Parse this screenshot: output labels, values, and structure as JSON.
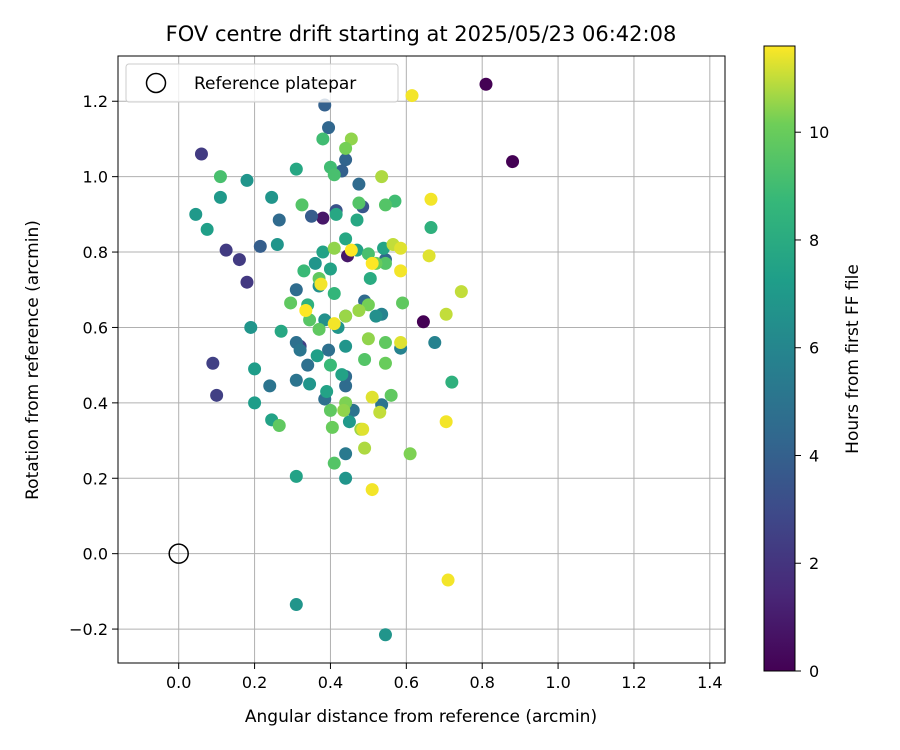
{
  "chart_data": {
    "type": "scatter",
    "title": "FOV centre drift starting at 2025/05/23 06:42:08",
    "xlabel": "Angular distance from reference (arcmin)",
    "ylabel": "Rotation from reference (arcmin)",
    "xlim": [
      -0.16,
      1.44
    ],
    "ylim": [
      -0.29,
      1.32
    ],
    "xticks": [
      "0.0",
      "0.2",
      "0.4",
      "0.6",
      "0.8",
      "1.0",
      "1.2",
      "1.4"
    ],
    "yticks": [
      "−0.2",
      "0.0",
      "0.2",
      "0.4",
      "0.6",
      "0.8",
      "1.0",
      "1.2"
    ],
    "grid": true,
    "legend": {
      "position": "top-left",
      "label": "Reference platepar"
    },
    "colorbar": {
      "label": "Hours from first FF file",
      "colormap": "viridis",
      "range": [
        0,
        11.6
      ],
      "ticks": [
        "0",
        "2",
        "4",
        "6",
        "8",
        "10"
      ]
    },
    "reference_point": {
      "x": 0.0,
      "y": 0.0
    },
    "points": [
      {
        "x": 0.81,
        "y": 1.245,
        "t": 0
      },
      {
        "x": 0.88,
        "y": 1.04,
        "t": 0
      },
      {
        "x": 0.645,
        "y": 0.615,
        "t": 0
      },
      {
        "x": 0.38,
        "y": 0.89,
        "t": 0.8
      },
      {
        "x": 0.445,
        "y": 0.79,
        "t": 0.8
      },
      {
        "x": 0.06,
        "y": 1.06,
        "t": 2.3
      },
      {
        "x": 0.125,
        "y": 0.805,
        "t": 2.3
      },
      {
        "x": 0.16,
        "y": 0.78,
        "t": 2.3
      },
      {
        "x": 0.18,
        "y": 0.72,
        "t": 2.2
      },
      {
        "x": 0.09,
        "y": 0.505,
        "t": 2.5
      },
      {
        "x": 0.1,
        "y": 0.42,
        "t": 2.5
      },
      {
        "x": 0.415,
        "y": 0.91,
        "t": 3.3
      },
      {
        "x": 0.485,
        "y": 0.92,
        "t": 3.5
      },
      {
        "x": 0.32,
        "y": 0.55,
        "t": 2.5
      },
      {
        "x": 0.385,
        "y": 1.19,
        "t": 4.0
      },
      {
        "x": 0.395,
        "y": 1.13,
        "t": 4.3
      },
      {
        "x": 0.44,
        "y": 1.045,
        "t": 4.2
      },
      {
        "x": 0.43,
        "y": 1.015,
        "t": 4.0
      },
      {
        "x": 0.475,
        "y": 0.98,
        "t": 4.5
      },
      {
        "x": 0.35,
        "y": 0.895,
        "t": 3.8
      },
      {
        "x": 0.265,
        "y": 0.885,
        "t": 4.5
      },
      {
        "x": 0.215,
        "y": 0.815,
        "t": 3.9
      },
      {
        "x": 0.31,
        "y": 0.7,
        "t": 4.6
      },
      {
        "x": 0.545,
        "y": 0.78,
        "t": 4.3
      },
      {
        "x": 0.49,
        "y": 0.67,
        "t": 4.5
      },
      {
        "x": 0.44,
        "y": 0.63,
        "t": 4.3
      },
      {
        "x": 0.31,
        "y": 0.56,
        "t": 4.8
      },
      {
        "x": 0.32,
        "y": 0.54,
        "t": 5.1
      },
      {
        "x": 0.34,
        "y": 0.5,
        "t": 4.8
      },
      {
        "x": 0.31,
        "y": 0.46,
        "t": 5.0
      },
      {
        "x": 0.24,
        "y": 0.445,
        "t": 5.0
      },
      {
        "x": 0.385,
        "y": 0.41,
        "t": 4.8
      },
      {
        "x": 0.44,
        "y": 0.445,
        "t": 4.6
      },
      {
        "x": 0.44,
        "y": 0.47,
        "t": 4.5
      },
      {
        "x": 0.46,
        "y": 0.38,
        "t": 5.0
      },
      {
        "x": 0.535,
        "y": 0.395,
        "t": 5.0
      },
      {
        "x": 0.44,
        "y": 0.265,
        "t": 5.3
      },
      {
        "x": 0.395,
        "y": 0.54,
        "t": 4.8
      },
      {
        "x": 0.535,
        "y": 0.635,
        "t": 5.8
      },
      {
        "x": 0.585,
        "y": 0.545,
        "t": 5.8
      },
      {
        "x": 0.675,
        "y": 0.56,
        "t": 5.8
      },
      {
        "x": 0.245,
        "y": 0.945,
        "t": 6.8
      },
      {
        "x": 0.26,
        "y": 0.82,
        "t": 6.8
      },
      {
        "x": 0.19,
        "y": 0.6,
        "t": 6.8
      },
      {
        "x": 0.075,
        "y": 0.86,
        "t": 7.3
      },
      {
        "x": 0.045,
        "y": 0.9,
        "t": 7.0
      },
      {
        "x": 0.11,
        "y": 0.945,
        "t": 7.0
      },
      {
        "x": 0.18,
        "y": 0.99,
        "t": 6.8
      },
      {
        "x": 0.36,
        "y": 0.77,
        "t": 6.8
      },
      {
        "x": 0.37,
        "y": 0.71,
        "t": 6.5
      },
      {
        "x": 0.385,
        "y": 0.62,
        "t": 6.5
      },
      {
        "x": 0.42,
        "y": 0.6,
        "t": 6.8
      },
      {
        "x": 0.44,
        "y": 0.55,
        "t": 6.8
      },
      {
        "x": 0.345,
        "y": 0.45,
        "t": 6.8
      },
      {
        "x": 0.2,
        "y": 0.49,
        "t": 7.2
      },
      {
        "x": 0.2,
        "y": 0.4,
        "t": 7.2
      },
      {
        "x": 0.245,
        "y": 0.355,
        "t": 7.5
      },
      {
        "x": 0.31,
        "y": 0.205,
        "t": 7.5
      },
      {
        "x": 0.44,
        "y": 0.2,
        "t": 6.8
      },
      {
        "x": 0.31,
        "y": -0.135,
        "t": 6.8
      },
      {
        "x": 0.545,
        "y": -0.215,
        "t": 6.8
      },
      {
        "x": 0.52,
        "y": 0.63,
        "t": 6.5
      },
      {
        "x": 0.45,
        "y": 0.35,
        "t": 7.0
      },
      {
        "x": 0.39,
        "y": 0.43,
        "t": 7.5
      },
      {
        "x": 0.43,
        "y": 0.475,
        "t": 7.5
      },
      {
        "x": 0.365,
        "y": 0.525,
        "t": 7.3
      },
      {
        "x": 0.27,
        "y": 0.59,
        "t": 7.8
      },
      {
        "x": 0.31,
        "y": 1.02,
        "t": 7.8
      },
      {
        "x": 0.415,
        "y": 0.9,
        "t": 7.8
      },
      {
        "x": 0.47,
        "y": 0.885,
        "t": 7.8
      },
      {
        "x": 0.38,
        "y": 0.8,
        "t": 7.5
      },
      {
        "x": 0.4,
        "y": 0.755,
        "t": 7.5
      },
      {
        "x": 0.505,
        "y": 0.73,
        "t": 8.0
      },
      {
        "x": 0.44,
        "y": 0.835,
        "t": 7.8
      },
      {
        "x": 0.47,
        "y": 0.805,
        "t": 7.5
      },
      {
        "x": 0.54,
        "y": 0.81,
        "t": 7.6
      },
      {
        "x": 0.34,
        "y": 0.66,
        "t": 8.3
      },
      {
        "x": 0.665,
        "y": 0.865,
        "t": 8.3
      },
      {
        "x": 0.72,
        "y": 0.455,
        "t": 8.3
      },
      {
        "x": 0.4,
        "y": 0.5,
        "t": 8.8
      },
      {
        "x": 0.41,
        "y": 0.69,
        "t": 8.6
      },
      {
        "x": 0.33,
        "y": 0.75,
        "t": 8.8
      },
      {
        "x": 0.38,
        "y": 1.1,
        "t": 9.0
      },
      {
        "x": 0.4,
        "y": 1.025,
        "t": 9.0
      },
      {
        "x": 0.41,
        "y": 1.005,
        "t": 9.2
      },
      {
        "x": 0.325,
        "y": 0.925,
        "t": 9.5
      },
      {
        "x": 0.11,
        "y": 1.0,
        "t": 9.2
      },
      {
        "x": 0.475,
        "y": 0.93,
        "t": 9.5
      },
      {
        "x": 0.57,
        "y": 0.935,
        "t": 9.0
      },
      {
        "x": 0.545,
        "y": 0.925,
        "t": 9.5
      },
      {
        "x": 0.5,
        "y": 0.795,
        "t": 9.2
      },
      {
        "x": 0.545,
        "y": 0.77,
        "t": 9.5
      },
      {
        "x": 0.52,
        "y": 0.77,
        "t": 10.0
      },
      {
        "x": 0.37,
        "y": 0.73,
        "t": 9.8
      },
      {
        "x": 0.345,
        "y": 0.62,
        "t": 9.6
      },
      {
        "x": 0.37,
        "y": 0.595,
        "t": 9.8
      },
      {
        "x": 0.49,
        "y": 0.515,
        "t": 9.5
      },
      {
        "x": 0.545,
        "y": 0.56,
        "t": 9.8
      },
      {
        "x": 0.545,
        "y": 0.505,
        "t": 10.0
      },
      {
        "x": 0.56,
        "y": 0.42,
        "t": 9.8
      },
      {
        "x": 0.4,
        "y": 0.38,
        "t": 9.8
      },
      {
        "x": 0.405,
        "y": 0.335,
        "t": 10.0
      },
      {
        "x": 0.41,
        "y": 0.24,
        "t": 9.5
      },
      {
        "x": 0.265,
        "y": 0.34,
        "t": 9.8
      },
      {
        "x": 0.295,
        "y": 0.665,
        "t": 9.8
      },
      {
        "x": 0.59,
        "y": 0.665,
        "t": 9.8
      },
      {
        "x": 0.5,
        "y": 0.66,
        "t": 10.2
      },
      {
        "x": 0.44,
        "y": 0.4,
        "t": 10.3
      },
      {
        "x": 0.435,
        "y": 0.38,
        "t": 10.5
      },
      {
        "x": 0.48,
        "y": 0.33,
        "t": 10.6
      },
      {
        "x": 0.49,
        "y": 0.28,
        "t": 10.8
      },
      {
        "x": 0.61,
        "y": 0.265,
        "t": 10.3
      },
      {
        "x": 0.455,
        "y": 1.1,
        "t": 10.5
      },
      {
        "x": 0.44,
        "y": 1.075,
        "t": 10.2
      },
      {
        "x": 0.535,
        "y": 1.0,
        "t": 10.8
      },
      {
        "x": 0.41,
        "y": 0.81,
        "t": 10.5
      },
      {
        "x": 0.5,
        "y": 0.57,
        "t": 10.5
      },
      {
        "x": 0.44,
        "y": 0.63,
        "t": 10.6
      },
      {
        "x": 0.475,
        "y": 0.645,
        "t": 10.6
      },
      {
        "x": 0.51,
        "y": 0.415,
        "t": 11.3
      },
      {
        "x": 0.53,
        "y": 0.375,
        "t": 11.0
      },
      {
        "x": 0.51,
        "y": 0.17,
        "t": 11.5
      },
      {
        "x": 0.485,
        "y": 0.33,
        "t": 11.3
      },
      {
        "x": 0.615,
        "y": 1.215,
        "t": 11.5
      },
      {
        "x": 0.665,
        "y": 0.94,
        "t": 11.5
      },
      {
        "x": 0.565,
        "y": 0.82,
        "t": 11.0
      },
      {
        "x": 0.585,
        "y": 0.81,
        "t": 11.3
      },
      {
        "x": 0.66,
        "y": 0.79,
        "t": 11.3
      },
      {
        "x": 0.585,
        "y": 0.75,
        "t": 11.5
      },
      {
        "x": 0.745,
        "y": 0.695,
        "t": 11.0
      },
      {
        "x": 0.705,
        "y": 0.635,
        "t": 11.0
      },
      {
        "x": 0.585,
        "y": 0.56,
        "t": 11.3
      },
      {
        "x": 0.705,
        "y": 0.35,
        "t": 11.5
      },
      {
        "x": 0.71,
        "y": -0.07,
        "t": 11.5
      },
      {
        "x": 0.375,
        "y": 0.715,
        "t": 11.5
      },
      {
        "x": 0.335,
        "y": 0.645,
        "t": 11.6
      },
      {
        "x": 0.41,
        "y": 0.61,
        "t": 11.5
      },
      {
        "x": 0.455,
        "y": 0.805,
        "t": 11.6
      },
      {
        "x": 0.51,
        "y": 0.77,
        "t": 11.6
      }
    ]
  }
}
